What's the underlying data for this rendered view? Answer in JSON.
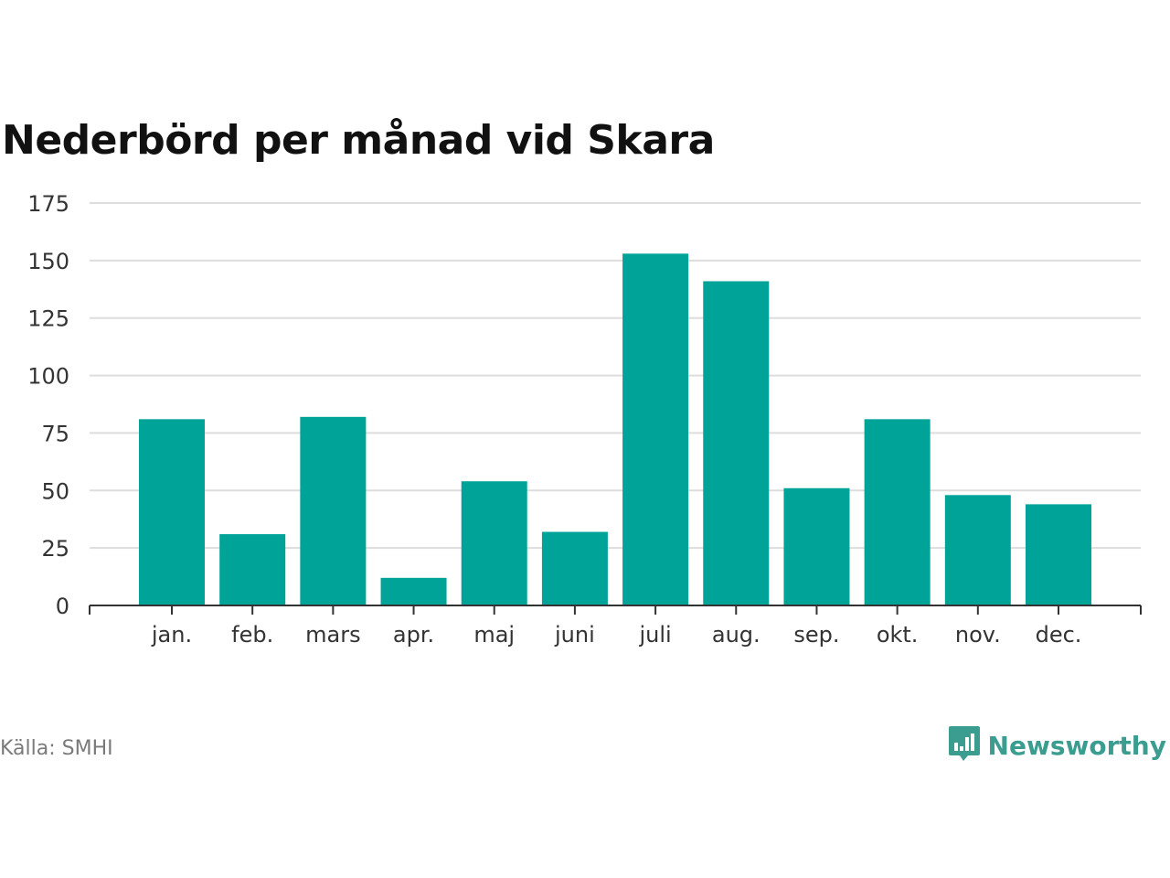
{
  "title": "Nederbörd per månad vid Skara",
  "source": "Källa: SMHI",
  "brand": {
    "name": "Newsworthy",
    "icon": "newsworthy-logo-icon",
    "color": "#3a9d8f"
  },
  "colors": {
    "bar": "#00a398",
    "grid": "#dddddd",
    "axis": "#333333"
  },
  "chart_data": {
    "type": "bar",
    "title": "Nederbörd per månad vid Skara",
    "xlabel": "",
    "ylabel": "",
    "categories": [
      "jan.",
      "feb.",
      "mars",
      "apr.",
      "maj",
      "juni",
      "juli",
      "aug.",
      "sep.",
      "okt.",
      "nov.",
      "dec."
    ],
    "values": [
      81,
      31,
      82,
      12,
      54,
      32,
      153,
      141,
      51,
      81,
      48,
      44
    ],
    "ylim": [
      0,
      175
    ],
    "yticks": [
      0,
      25,
      50,
      75,
      100,
      125,
      150,
      175
    ],
    "grid": true,
    "legend": "none"
  }
}
